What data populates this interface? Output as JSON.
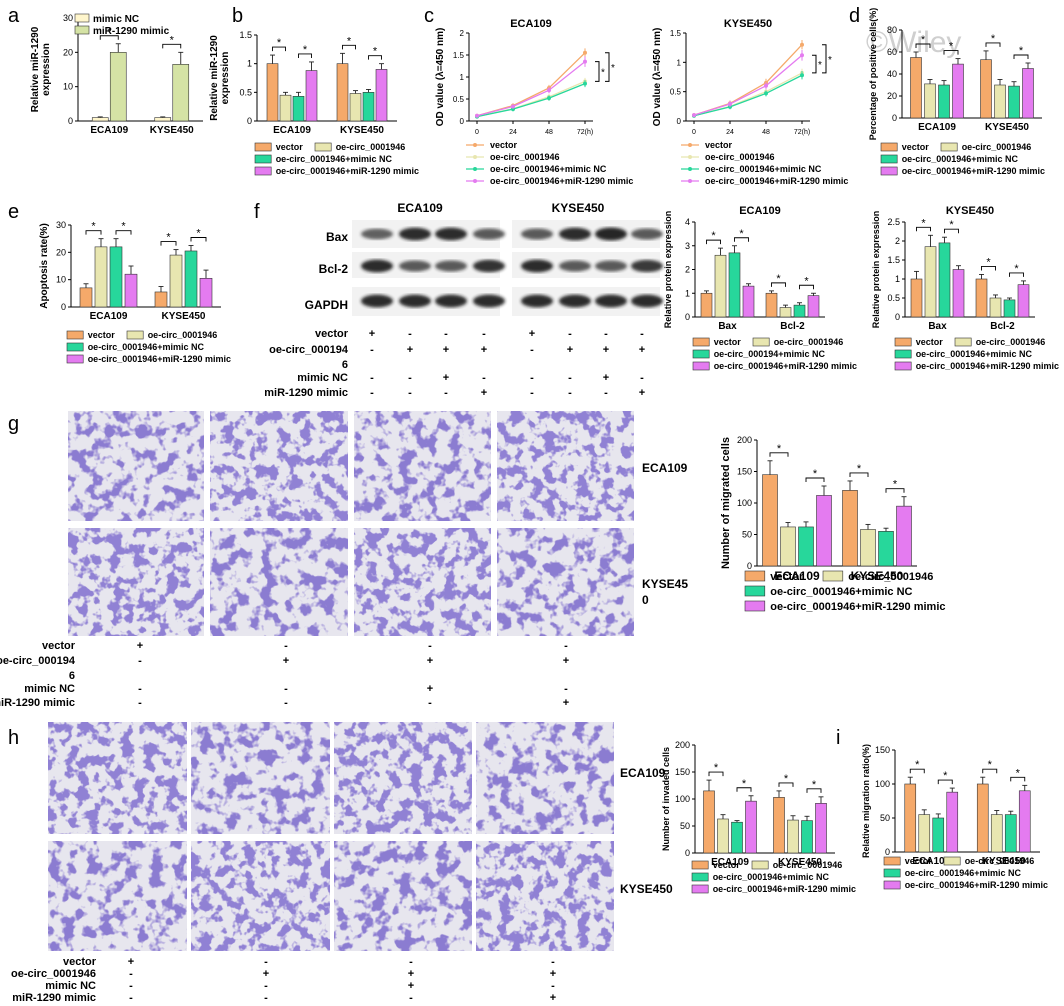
{
  "colors": {
    "vector": "#f5a96a",
    "oe": "#e8e6b0",
    "mnc": "#27d79b",
    "mir": "#e47bf0",
    "nc": "#fff6cc",
    "mimic": "#d5e3a5",
    "blot": "#1c1c1c",
    "stain": "#4a3aa6"
  },
  "legend_main": [
    "vector",
    "oe-circ_0001946",
    "oe-circ_0001946+mimic NC",
    "oe-circ_0001946+miR-1290 mimic"
  ],
  "legend_f": [
    "vector",
    "oe-circ_0001946",
    "oe-circ_000194+mimic NC",
    "oe-circ_0001946+miR-1290 mimic"
  ],
  "watermark": "©Wiley",
  "panel_letters": {
    "a": "a",
    "b": "b",
    "c": "c",
    "d": "d",
    "e": "e",
    "f": "f",
    "g": "g",
    "h": "h",
    "i": "i"
  },
  "star": "*",
  "cells": [
    "ECA109",
    "KYSE450"
  ],
  "panel_a": {
    "legend": [
      "mimic NC",
      "miR-1290 mimic"
    ],
    "ylabel": [
      "Relative miR-1290",
      "expression"
    ]
  },
  "panel_b": {
    "ylabel": [
      "Relative miR-1290",
      "expression"
    ]
  },
  "panel_c": {
    "titles": [
      "ECA109",
      "KYSE450"
    ],
    "ylabel": "OD value (λ=450 nm)",
    "x_ticks": [
      "0",
      "24",
      "48",
      "72(h)"
    ]
  },
  "panel_d": {
    "ylabel": "Percentage of positive cells(%)"
  },
  "panel_e": {
    "ylabel": "Apoptosis rate(%)"
  },
  "panel_f": {
    "blot_titles": [
      "ECA109",
      "KYSE450"
    ],
    "proteins": [
      "Bax",
      "Bcl-2",
      "GAPDH"
    ],
    "chart_titles": [
      "ECA109",
      "KYSE450"
    ],
    "ylabel": "Relative protein expression",
    "cats": [
      "Bax",
      "Bcl-2"
    ],
    "treat_labels": [
      "vector",
      "oe-circ_000194",
      "6",
      "mimic NC",
      "miR-1290 mimic"
    ],
    "signs": [
      [
        "+",
        "-",
        "-",
        "-",
        "+",
        "-",
        "-",
        "-"
      ],
      [
        "-",
        "+",
        "+",
        "+",
        "-",
        "+",
        "+",
        "+"
      ],
      [
        "-",
        "-",
        "+",
        "-",
        "-",
        "-",
        "+",
        "-"
      ],
      [
        "-",
        "-",
        "-",
        "+",
        "-",
        "-",
        "-",
        "+"
      ]
    ]
  },
  "panel_g": {
    "row_labels": [
      "ECA109",
      "KYSE45",
      "0"
    ],
    "ylabel": "Number of migrated cells",
    "treat_labels": [
      "vector",
      "oe-circ_000194",
      "6",
      "mimic NC",
      "miR-1290 mimic"
    ],
    "signs": [
      [
        "+",
        "-",
        "-",
        "-"
      ],
      [
        "-",
        "+",
        "+",
        "+"
      ],
      [
        "-",
        "-",
        "+",
        "-"
      ],
      [
        "-",
        "-",
        "-",
        "+"
      ]
    ]
  },
  "panel_h": {
    "row_labels": [
      "ECA109",
      "KYSE450"
    ],
    "ylabel": "Number of invaded cells",
    "treat_labels": [
      "vector",
      "oe-circ_0001946",
      "mimic NC",
      "miR-1290 mimic"
    ],
    "signs": [
      [
        "+",
        "-",
        "-",
        "-"
      ],
      [
        "-",
        "+",
        "+",
        "+"
      ],
      [
        "-",
        "-",
        "+",
        "-"
      ],
      [
        "-",
        "-",
        "-",
        "+"
      ]
    ]
  },
  "panel_i": {
    "ylabel": "Relative migration ratio(%)"
  },
  "chart_data": [
    {
      "id": "a",
      "type": "bar",
      "categories": [
        "ECA109",
        "KYSE450"
      ],
      "ylabel": "Relative miR-1290 expression",
      "ylim": [
        0,
        30
      ],
      "yticks": [
        0,
        10,
        20,
        30
      ],
      "series": [
        {
          "name": "mimic NC",
          "values": [
            1,
            1
          ],
          "err": [
            0.2,
            0.2
          ]
        },
        {
          "name": "miR-1290 mimic",
          "values": [
            20,
            16.5
          ],
          "err": [
            2.5,
            3.5
          ]
        }
      ]
    },
    {
      "id": "b",
      "type": "bar",
      "categories": [
        "ECA109",
        "KYSE450"
      ],
      "ylabel": "Relative miR-1290 expression",
      "ylim": [
        0,
        1.5
      ],
      "yticks": [
        0.0,
        0.5,
        1.0,
        1.5
      ],
      "series": [
        {
          "name": "vector",
          "values": [
            1.0,
            1.0
          ],
          "err": [
            0.15,
            0.18
          ]
        },
        {
          "name": "oe-circ_0001946",
          "values": [
            0.45,
            0.48
          ],
          "err": [
            0.05,
            0.05
          ]
        },
        {
          "name": "oe-circ_0001946+mimic NC",
          "values": [
            0.43,
            0.5
          ],
          "err": [
            0.07,
            0.05
          ]
        },
        {
          "name": "oe-circ_0001946+miR-1290 mimic",
          "values": [
            0.88,
            0.9
          ],
          "err": [
            0.15,
            0.1
          ]
        }
      ]
    },
    {
      "id": "c1",
      "type": "line",
      "title": "ECA109",
      "x": [
        0,
        24,
        48,
        72
      ],
      "ylabel": "OD value (λ=450 nm)",
      "ylim": [
        0,
        2.0
      ],
      "yticks": [
        0.0,
        0.5,
        1.0,
        1.5,
        2.0
      ],
      "series": [
        {
          "name": "vector",
          "values": [
            0.12,
            0.35,
            0.75,
            1.55
          ],
          "err": [
            0.03,
            0.05,
            0.07,
            0.1
          ]
        },
        {
          "name": "oe-circ_0001946",
          "values": [
            0.1,
            0.28,
            0.55,
            0.9
          ],
          "err": [
            0.03,
            0.05,
            0.06,
            0.08
          ]
        },
        {
          "name": "oe-circ_0001946+mimic NC",
          "values": [
            0.1,
            0.27,
            0.52,
            0.85
          ],
          "err": [
            0.03,
            0.05,
            0.06,
            0.08
          ]
        },
        {
          "name": "oe-circ_0001946+miR-1290 mimic",
          "values": [
            0.12,
            0.33,
            0.7,
            1.35
          ],
          "err": [
            0.03,
            0.05,
            0.07,
            0.12
          ]
        }
      ]
    },
    {
      "id": "c2",
      "type": "line",
      "title": "KYSE450",
      "x": [
        0,
        24,
        48,
        72
      ],
      "ylabel": "OD value (λ=450 nm)",
      "ylim": [
        0,
        1.5
      ],
      "yticks": [
        0.0,
        0.5,
        1.0,
        1.5
      ],
      "series": [
        {
          "name": "vector",
          "values": [
            0.1,
            0.3,
            0.65,
            1.3
          ],
          "err": [
            0.03,
            0.05,
            0.07,
            0.08
          ]
        },
        {
          "name": "oe-circ_0001946",
          "values": [
            0.09,
            0.25,
            0.5,
            0.82
          ],
          "err": [
            0.03,
            0.04,
            0.05,
            0.07
          ]
        },
        {
          "name": "oe-circ_0001946+mimic NC",
          "values": [
            0.09,
            0.24,
            0.47,
            0.78
          ],
          "err": [
            0.03,
            0.04,
            0.05,
            0.07
          ]
        },
        {
          "name": "oe-circ_0001946+miR-1290 mimic",
          "values": [
            0.1,
            0.29,
            0.6,
            1.12
          ],
          "err": [
            0.03,
            0.05,
            0.06,
            0.09
          ]
        }
      ]
    },
    {
      "id": "d",
      "type": "bar",
      "categories": [
        "ECA109",
        "KYSE450"
      ],
      "ylabel": "Percentage of positive cells(%)",
      "ylim": [
        0,
        80
      ],
      "yticks": [
        0,
        20,
        40,
        60,
        80
      ],
      "series": [
        {
          "name": "vector",
          "values": [
            55,
            53
          ],
          "err": [
            5,
            8
          ]
        },
        {
          "name": "oe-circ_0001946",
          "values": [
            31,
            30
          ],
          "err": [
            4,
            5
          ]
        },
        {
          "name": "oe-circ_0001946+mimic NC",
          "values": [
            30,
            29
          ],
          "err": [
            4,
            4
          ]
        },
        {
          "name": "oe-circ_0001946+miR-1290 mimic",
          "values": [
            49,
            45
          ],
          "err": [
            5,
            5
          ]
        }
      ]
    },
    {
      "id": "e",
      "type": "bar",
      "categories": [
        "ECA109",
        "KYSE450"
      ],
      "ylabel": "Apoptosis rate(%)",
      "ylim": [
        0,
        30
      ],
      "yticks": [
        0,
        10,
        20,
        30
      ],
      "series": [
        {
          "name": "vector",
          "values": [
            7,
            5.5
          ],
          "err": [
            1.5,
            2
          ]
        },
        {
          "name": "oe-circ_0001946",
          "values": [
            22,
            19
          ],
          "err": [
            3,
            2
          ]
        },
        {
          "name": "oe-circ_0001946+mimic NC",
          "values": [
            22,
            20.5
          ],
          "err": [
            3,
            2
          ]
        },
        {
          "name": "oe-circ_0001946+miR-1290 mimic",
          "values": [
            12,
            10.5
          ],
          "err": [
            3,
            3
          ]
        }
      ]
    },
    {
      "id": "f1",
      "type": "bar",
      "title": "ECA109",
      "categories": [
        "Bax",
        "Bcl-2"
      ],
      "ylabel": "Relative protein expression",
      "ylim": [
        0,
        4
      ],
      "yticks": [
        0,
        1,
        2,
        3,
        4
      ],
      "series": [
        {
          "name": "vector",
          "values": [
            1.0,
            1.0
          ],
          "err": [
            0.1,
            0.1
          ]
        },
        {
          "name": "oe-circ_0001946",
          "values": [
            2.6,
            0.4
          ],
          "err": [
            0.3,
            0.1
          ]
        },
        {
          "name": "oe-circ_000194+mimic NC",
          "values": [
            2.7,
            0.5
          ],
          "err": [
            0.3,
            0.1
          ]
        },
        {
          "name": "oe-circ_0001946+miR-1290 mimic",
          "values": [
            1.3,
            0.9
          ],
          "err": [
            0.1,
            0.1
          ]
        }
      ]
    },
    {
      "id": "f2",
      "type": "bar",
      "title": "KYSE450",
      "categories": [
        "Bax",
        "Bcl-2"
      ],
      "ylabel": "Relative protein expression",
      "ylim": [
        0,
        2.5
      ],
      "yticks": [
        0.0,
        0.5,
        1.0,
        1.5,
        2.0,
        2.5
      ],
      "series": [
        {
          "name": "vector",
          "values": [
            1.0,
            1.0
          ],
          "err": [
            0.2,
            0.12
          ]
        },
        {
          "name": "oe-circ_0001946",
          "values": [
            1.85,
            0.5
          ],
          "err": [
            0.3,
            0.08
          ]
        },
        {
          "name": "oe-circ_000194+mimic NC",
          "values": [
            1.95,
            0.45
          ],
          "err": [
            0.15,
            0.05
          ]
        },
        {
          "name": "oe-circ_0001946+miR-1290 mimic",
          "values": [
            1.25,
            0.85
          ],
          "err": [
            0.1,
            0.1
          ]
        }
      ]
    },
    {
      "id": "g",
      "type": "bar",
      "categories": [
        "ECA109",
        "KYSE450"
      ],
      "ylabel": "Number of migrated cells",
      "ylim": [
        0,
        200
      ],
      "yticks": [
        0,
        50,
        100,
        150,
        200
      ],
      "series": [
        {
          "name": "vector",
          "values": [
            145,
            120
          ],
          "err": [
            22,
            15
          ]
        },
        {
          "name": "oe-circ_0001946",
          "values": [
            62,
            58
          ],
          "err": [
            7,
            8
          ]
        },
        {
          "name": "oe-circ_0001946+mimic NC",
          "values": [
            62,
            55
          ],
          "err": [
            8,
            5
          ]
        },
        {
          "name": "oe-circ_0001946+miR-1290 mimic",
          "values": [
            112,
            95
          ],
          "err": [
            15,
            15
          ]
        }
      ]
    },
    {
      "id": "h",
      "type": "bar",
      "categories": [
        "ECA109",
        "KYSE450"
      ],
      "ylabel": "Number of invaded cells",
      "ylim": [
        0,
        200
      ],
      "yticks": [
        0,
        50,
        100,
        150,
        200
      ],
      "series": [
        {
          "name": "vector",
          "values": [
            115,
            103
          ],
          "err": [
            20,
            12
          ]
        },
        {
          "name": "oe-circ_0001946",
          "values": [
            63,
            61
          ],
          "err": [
            8,
            8
          ]
        },
        {
          "name": "oe-circ_0001946+mimic NC",
          "values": [
            57,
            60
          ],
          "err": [
            3,
            8
          ]
        },
        {
          "name": "oe-circ_0001946+miR-1290 mimic",
          "values": [
            96,
            92
          ],
          "err": [
            10,
            12
          ]
        }
      ]
    },
    {
      "id": "i",
      "type": "bar",
      "categories": [
        "ECA109",
        "KYSE450"
      ],
      "ylabel": "Relative migration ratio(%)",
      "ylim": [
        0,
        150
      ],
      "yticks": [
        0,
        50,
        100,
        150
      ],
      "series": [
        {
          "name": "vector",
          "values": [
            100,
            100
          ],
          "err": [
            10,
            10
          ]
        },
        {
          "name": "oe-circ_0001946",
          "values": [
            55,
            55
          ],
          "err": [
            7,
            6
          ]
        },
        {
          "name": "oe-circ_0001946+mimic NC",
          "values": [
            50,
            55
          ],
          "err": [
            6,
            5
          ]
        },
        {
          "name": "oe-circ_0001946+miR-1290 mimic",
          "values": [
            88,
            90
          ],
          "err": [
            6,
            8
          ]
        }
      ]
    }
  ]
}
